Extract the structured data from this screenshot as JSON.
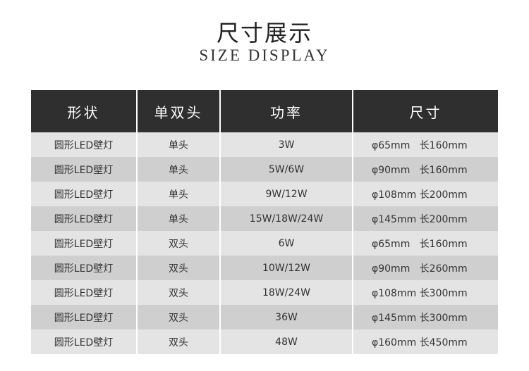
{
  "title": "尺寸展示",
  "subtitle": "SIZE DISPLAY",
  "table": {
    "headers": [
      "形状",
      "单双头",
      "功率",
      "尺寸"
    ],
    "rows": [
      [
        "圆形LED壁灯",
        "单头",
        "3W",
        "φ65mm   长160mm"
      ],
      [
        "圆形LED壁灯",
        "单头",
        "5W/6W",
        "φ90mm   长160mm"
      ],
      [
        "圆形LED壁灯",
        "单头",
        "9W/12W",
        "φ108mm 长200mm"
      ],
      [
        "圆形LED壁灯",
        "单头",
        "15W/18W/24W",
        "φ145mm 长200mm"
      ],
      [
        "圆形LED壁灯",
        "双头",
        "6W",
        "φ65mm   长160mm"
      ],
      [
        "圆形LED壁灯",
        "双头",
        "10W/12W",
        "φ90mm   长260mm"
      ],
      [
        "圆形LED壁灯",
        "双头",
        "18W/24W",
        "φ108mm 长300mm"
      ],
      [
        "圆形LED壁灯",
        "双头",
        "36W",
        "φ145mm 长300mm"
      ],
      [
        "圆形LED壁灯",
        "双头",
        "48W",
        "φ160mm 长450mm"
      ]
    ]
  }
}
